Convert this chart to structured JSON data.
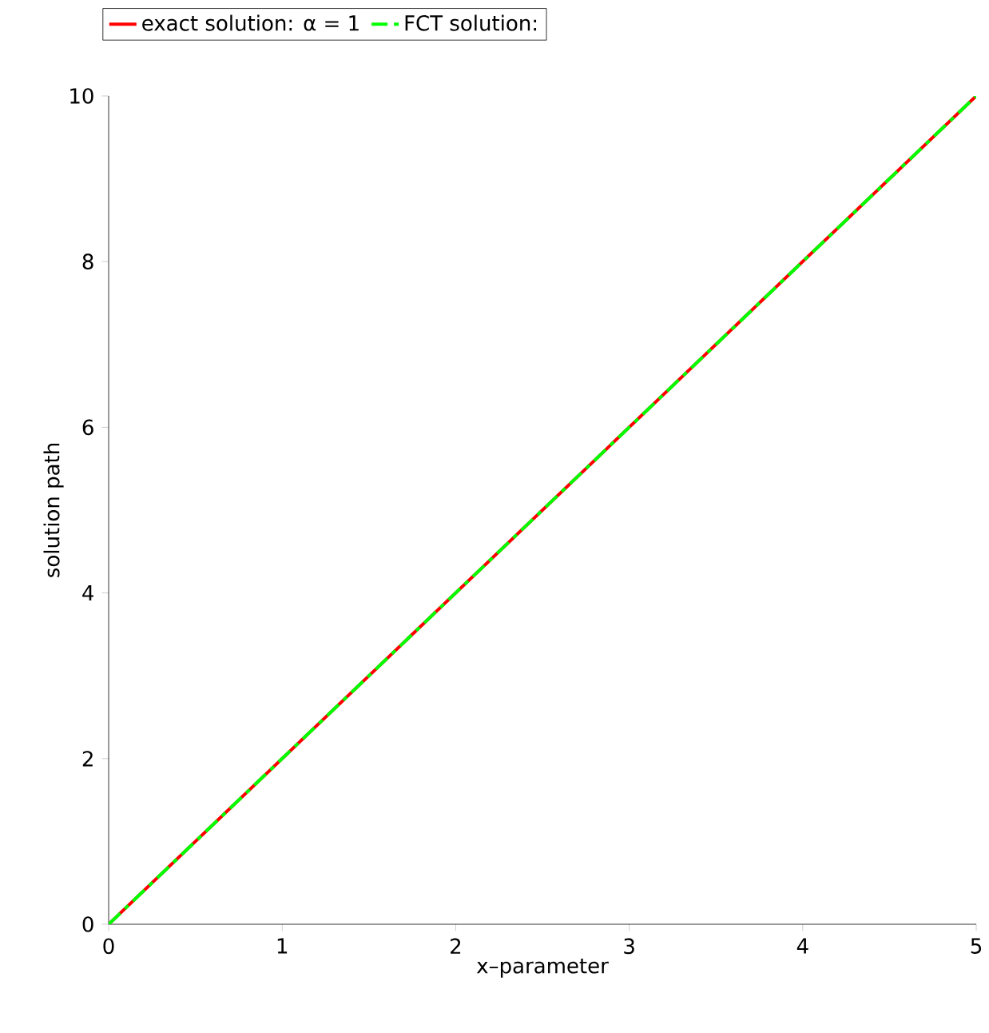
{
  "chart_data": {
    "type": "line",
    "xlabel": "x–parameter",
    "ylabel": "solution path",
    "x": [
      0,
      1,
      2,
      3,
      4,
      5
    ],
    "series": [
      {
        "name": "exact solution: α = 1",
        "color": "#ff0000",
        "values": [
          0,
          2,
          4,
          6,
          8,
          10
        ],
        "line_style": "solid"
      },
      {
        "name": "FCT solution:",
        "color": "#00ff00",
        "values": [
          0,
          2,
          4,
          6,
          8,
          10
        ],
        "line_style": "dashed"
      }
    ],
    "xlim": [
      0,
      5
    ],
    "ylim": [
      0,
      10
    ],
    "xticks": [
      0,
      1,
      2,
      3,
      4,
      5
    ],
    "yticks": [
      0,
      2,
      4,
      6,
      8,
      10
    ],
    "grid": false,
    "legend": "top"
  }
}
